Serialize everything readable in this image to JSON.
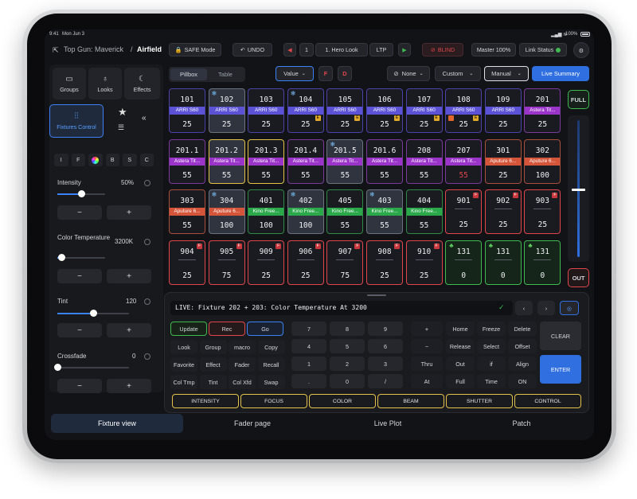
{
  "status": {
    "time": "9:41",
    "date": "Mon Jun 3",
    "battery": "100%"
  },
  "header": {
    "breadcrumb_parent": "Top Gun: Maverick",
    "breadcrumb_sep": "/",
    "breadcrumb_current": "Airfield",
    "safe_mode": "SAFE Mode",
    "undo": "UNDO",
    "cue_number": "1",
    "cue_name": "1. Hero Look",
    "ltp": "LTP",
    "blind": "BLIND",
    "master": "Master 100%",
    "link_status": "Link Status"
  },
  "toolbar": {
    "pillbox": "Pillbox",
    "table": "Table",
    "value": "Value",
    "f_label": "F",
    "d_label": "D",
    "none": "None",
    "custom": "Custom",
    "manual": "Manual",
    "live_summary": "Live Summary"
  },
  "sidebar": {
    "groups": "Groups",
    "looks": "Looks",
    "effects": "Effects",
    "fixtures_control": "Fixtures Control",
    "attr_tabs": [
      "I",
      "F",
      "B",
      "S",
      "C"
    ],
    "intensity_label": "Intensity",
    "intensity_value": "50%",
    "intensity_level": 0.5,
    "ct_label": "Color Temperature",
    "ct_value": "3200K",
    "ct_level": 0.08,
    "tint_label": "Tint",
    "tint_value": "120",
    "tint_level": 0.5,
    "crossfade_label": "Crossfade",
    "crossfade_value": "0",
    "crossfade_level": 0.0,
    "minus": "−",
    "plus": "+"
  },
  "grid": {
    "rows": [
      [
        {
          "num": "101",
          "label": "ARRI S60",
          "label_color": "#5b52d6",
          "val": "25"
        },
        {
          "num": "102",
          "label": "ARRI S60",
          "label_color": "#5b52d6",
          "val": "25",
          "selected": true,
          "snow": true
        },
        {
          "num": "103",
          "label": "ARRI S60",
          "label_color": "#5b52d6",
          "val": "25"
        },
        {
          "num": "104",
          "label": "ARRI S60",
          "label_color": "#5b52d6",
          "val": "25",
          "snow": true,
          "e": true
        },
        {
          "num": "105",
          "label": "ARRI S60",
          "label_color": "#5b52d6",
          "val": "25",
          "e": true
        },
        {
          "num": "106",
          "label": "ARRI S60",
          "label_color": "#5b52d6",
          "val": "25",
          "e": true
        },
        {
          "num": "107",
          "label": "ARRI S60",
          "label_color": "#5b52d6",
          "val": "25",
          "e": true
        },
        {
          "num": "108",
          "label": "ARRI S60",
          "label_color": "#5b52d6",
          "val": "25",
          "e": true,
          "redbar": true
        },
        {
          "num": "109",
          "label": "ARRI S60",
          "label_color": "#5b52d6",
          "val": "25"
        },
        {
          "num": "201",
          "label": "Astera Tit...",
          "label_color": "#9b35c9",
          "val": "25"
        }
      ],
      [
        {
          "num": "201.1",
          "label": "Astera Tit...",
          "label_color": "#9b35c9",
          "val": "55"
        },
        {
          "num": "201.2",
          "label": "Astera Tit...",
          "label_color": "#9b35c9",
          "val": "55",
          "gold": true,
          "selected": true
        },
        {
          "num": "201.3",
          "label": "Astera Tit...",
          "label_color": "#9b35c9",
          "val": "55",
          "gold": true
        },
        {
          "num": "201.4",
          "label": "Astera Tit...",
          "label_color": "#9b35c9",
          "val": "55"
        },
        {
          "num": "201.5",
          "label": "Astera Tit...",
          "label_color": "#9b35c9",
          "val": "55",
          "selected": true,
          "snow": true
        },
        {
          "num": "201.6",
          "label": "Astera Tit...",
          "label_color": "#9b35c9",
          "val": "55"
        },
        {
          "num": "208",
          "label": "Astera Tit...",
          "label_color": "#9b35c9",
          "val": "55"
        },
        {
          "num": "207",
          "label": "Astera Tit...",
          "label_color": "#9b35c9",
          "val": "55",
          "redval": true
        },
        {
          "num": "301",
          "label": "Aputure 6...",
          "label_color": "#d4553a",
          "val": "25"
        },
        {
          "num": "302",
          "label": "Aputure 6...",
          "label_color": "#d4553a",
          "val": "100"
        }
      ],
      [
        {
          "num": "303",
          "label": "Aputure 6...",
          "label_color": "#d4553a",
          "val": "55"
        },
        {
          "num": "304",
          "label": "Aputure 6...",
          "label_color": "#d4553a",
          "val": "100",
          "selected": true,
          "snow": true
        },
        {
          "num": "401",
          "label": "Kino Free...",
          "label_color": "#2aa84a",
          "val": "100"
        },
        {
          "num": "402",
          "label": "Kino Free...",
          "label_color": "#2aa84a",
          "val": "100",
          "selected": true,
          "snow": true
        },
        {
          "num": "405",
          "label": "Kino Free...",
          "label_color": "#2aa84a",
          "val": "55"
        },
        {
          "num": "403",
          "label": "Kino Free...",
          "label_color": "#2aa84a",
          "val": "55",
          "selected": true,
          "snow": true
        },
        {
          "num": "404",
          "label": "Kino Free...",
          "label_color": "#2aa84a",
          "val": "55"
        },
        {
          "num": "901",
          "label": "",
          "val": "25",
          "badge": true
        },
        {
          "num": "902",
          "label": "",
          "val": "25",
          "badge": true
        },
        {
          "num": "903",
          "label": "",
          "val": "25",
          "badge": true
        }
      ],
      [
        {
          "num": "904",
          "label": "",
          "val": "25",
          "badge": true
        },
        {
          "num": "905",
          "label": "",
          "val": "75",
          "badge": true
        },
        {
          "num": "909",
          "label": "",
          "val": "25",
          "badge": true
        },
        {
          "num": "906",
          "label": "",
          "val": "25",
          "badge": true
        },
        {
          "num": "907",
          "label": "",
          "val": "75",
          "badge": true
        },
        {
          "num": "908",
          "label": "",
          "val": "25",
          "badge": true
        },
        {
          "num": "910",
          "label": "",
          "val": "25",
          "badge": true
        },
        {
          "num": "131",
          "label": "",
          "val": "0",
          "green": true,
          "tree": true
        },
        {
          "num": "131",
          "label": "",
          "val": "0",
          "green": true,
          "tree": true
        },
        {
          "num": "131",
          "label": "",
          "val": "0",
          "green": true,
          "tree": true
        }
      ]
    ]
  },
  "fader": {
    "full": "FULL",
    "out": "OUT"
  },
  "command": {
    "line": "LIVE: Fixture 202 + 203: Color Temperature At 3200"
  },
  "keypad": {
    "update": "Update",
    "rec": "Rec",
    "go": "Go",
    "left_rows": [
      [
        "Look",
        "Group",
        "macro",
        "Copy"
      ],
      [
        "Favorite",
        "Effect",
        "Fader",
        "Recall"
      ],
      [
        "Col Tmp",
        "Tint",
        "Col Xfd",
        "Swap"
      ]
    ],
    "nums": [
      [
        "7",
        "8",
        "9"
      ],
      [
        "4",
        "5",
        "6"
      ],
      [
        "1",
        "2",
        "3"
      ],
      [
        ".",
        "0",
        "/"
      ]
    ],
    "ops": [
      "+",
      "−",
      "Thru",
      "At"
    ],
    "right_rows": [
      [
        "Home",
        "Freeze",
        "Delete"
      ],
      [
        "Release",
        "Select",
        "Offset"
      ],
      [
        "Out",
        "if",
        "Align"
      ],
      [
        "Full",
        "Time",
        "ON"
      ]
    ],
    "clear": "CLEAR",
    "enter": "ENTER",
    "categories": [
      "INTENSITY",
      "FOCUS",
      "COLOR",
      "BEAM",
      "SHUTTER",
      "CONTROL"
    ]
  },
  "bottom_tabs": [
    "Fixture view",
    "Fader page",
    "Live Plot",
    "Patch"
  ],
  "colors": {
    "accent": "#2f6fe0",
    "gold": "#e3c14a",
    "red": "#e0474c",
    "green": "#3fb950"
  }
}
